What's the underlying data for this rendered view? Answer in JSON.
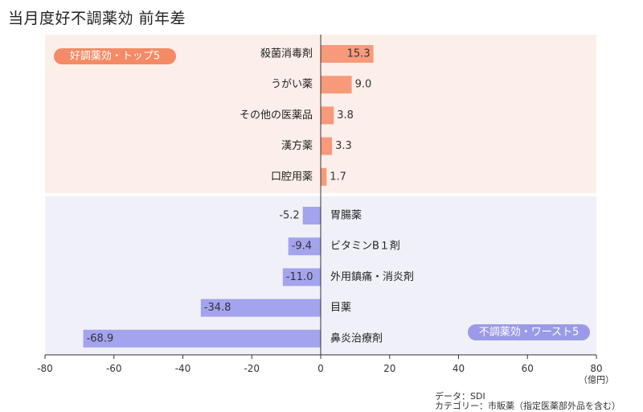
{
  "title": "当月度好不調薬効 前年差",
  "chart_data": {
    "type": "bar",
    "orientation": "horizontal",
    "xlim": [
      -80,
      80
    ],
    "xticks": [
      -80,
      -60,
      -40,
      -20,
      0,
      20,
      40,
      60,
      80
    ],
    "unit_label": "（億円）",
    "groups": [
      {
        "label": "好調薬効・トップ5",
        "bar_color": "#f79a7a",
        "panel_color": "#fcefe9",
        "badge_color": "#f48a66",
        "categories": [
          "殺菌消毒剤",
          "うがい薬",
          "その他の医薬品",
          "漢方薬",
          "口腔用薬"
        ],
        "values": [
          15.3,
          9.0,
          3.8,
          3.3,
          1.7
        ]
      },
      {
        "label": "不調薬効・ワースト5",
        "bar_color": "#a3a3ee",
        "panel_color": "#f0f0f8",
        "badge_color": "#9a9ae6",
        "categories": [
          "胃腸薬",
          "ビタミンB１剤",
          "外用鎮痛・消炎剤",
          "目薬",
          "鼻炎治療剤"
        ],
        "values": [
          -5.2,
          -9.4,
          -11.0,
          -34.8,
          -68.9
        ]
      }
    ]
  },
  "source": {
    "line1": "データ：SDI",
    "line2": "カテゴリー：市販薬（指定医薬部外品を含む）"
  }
}
